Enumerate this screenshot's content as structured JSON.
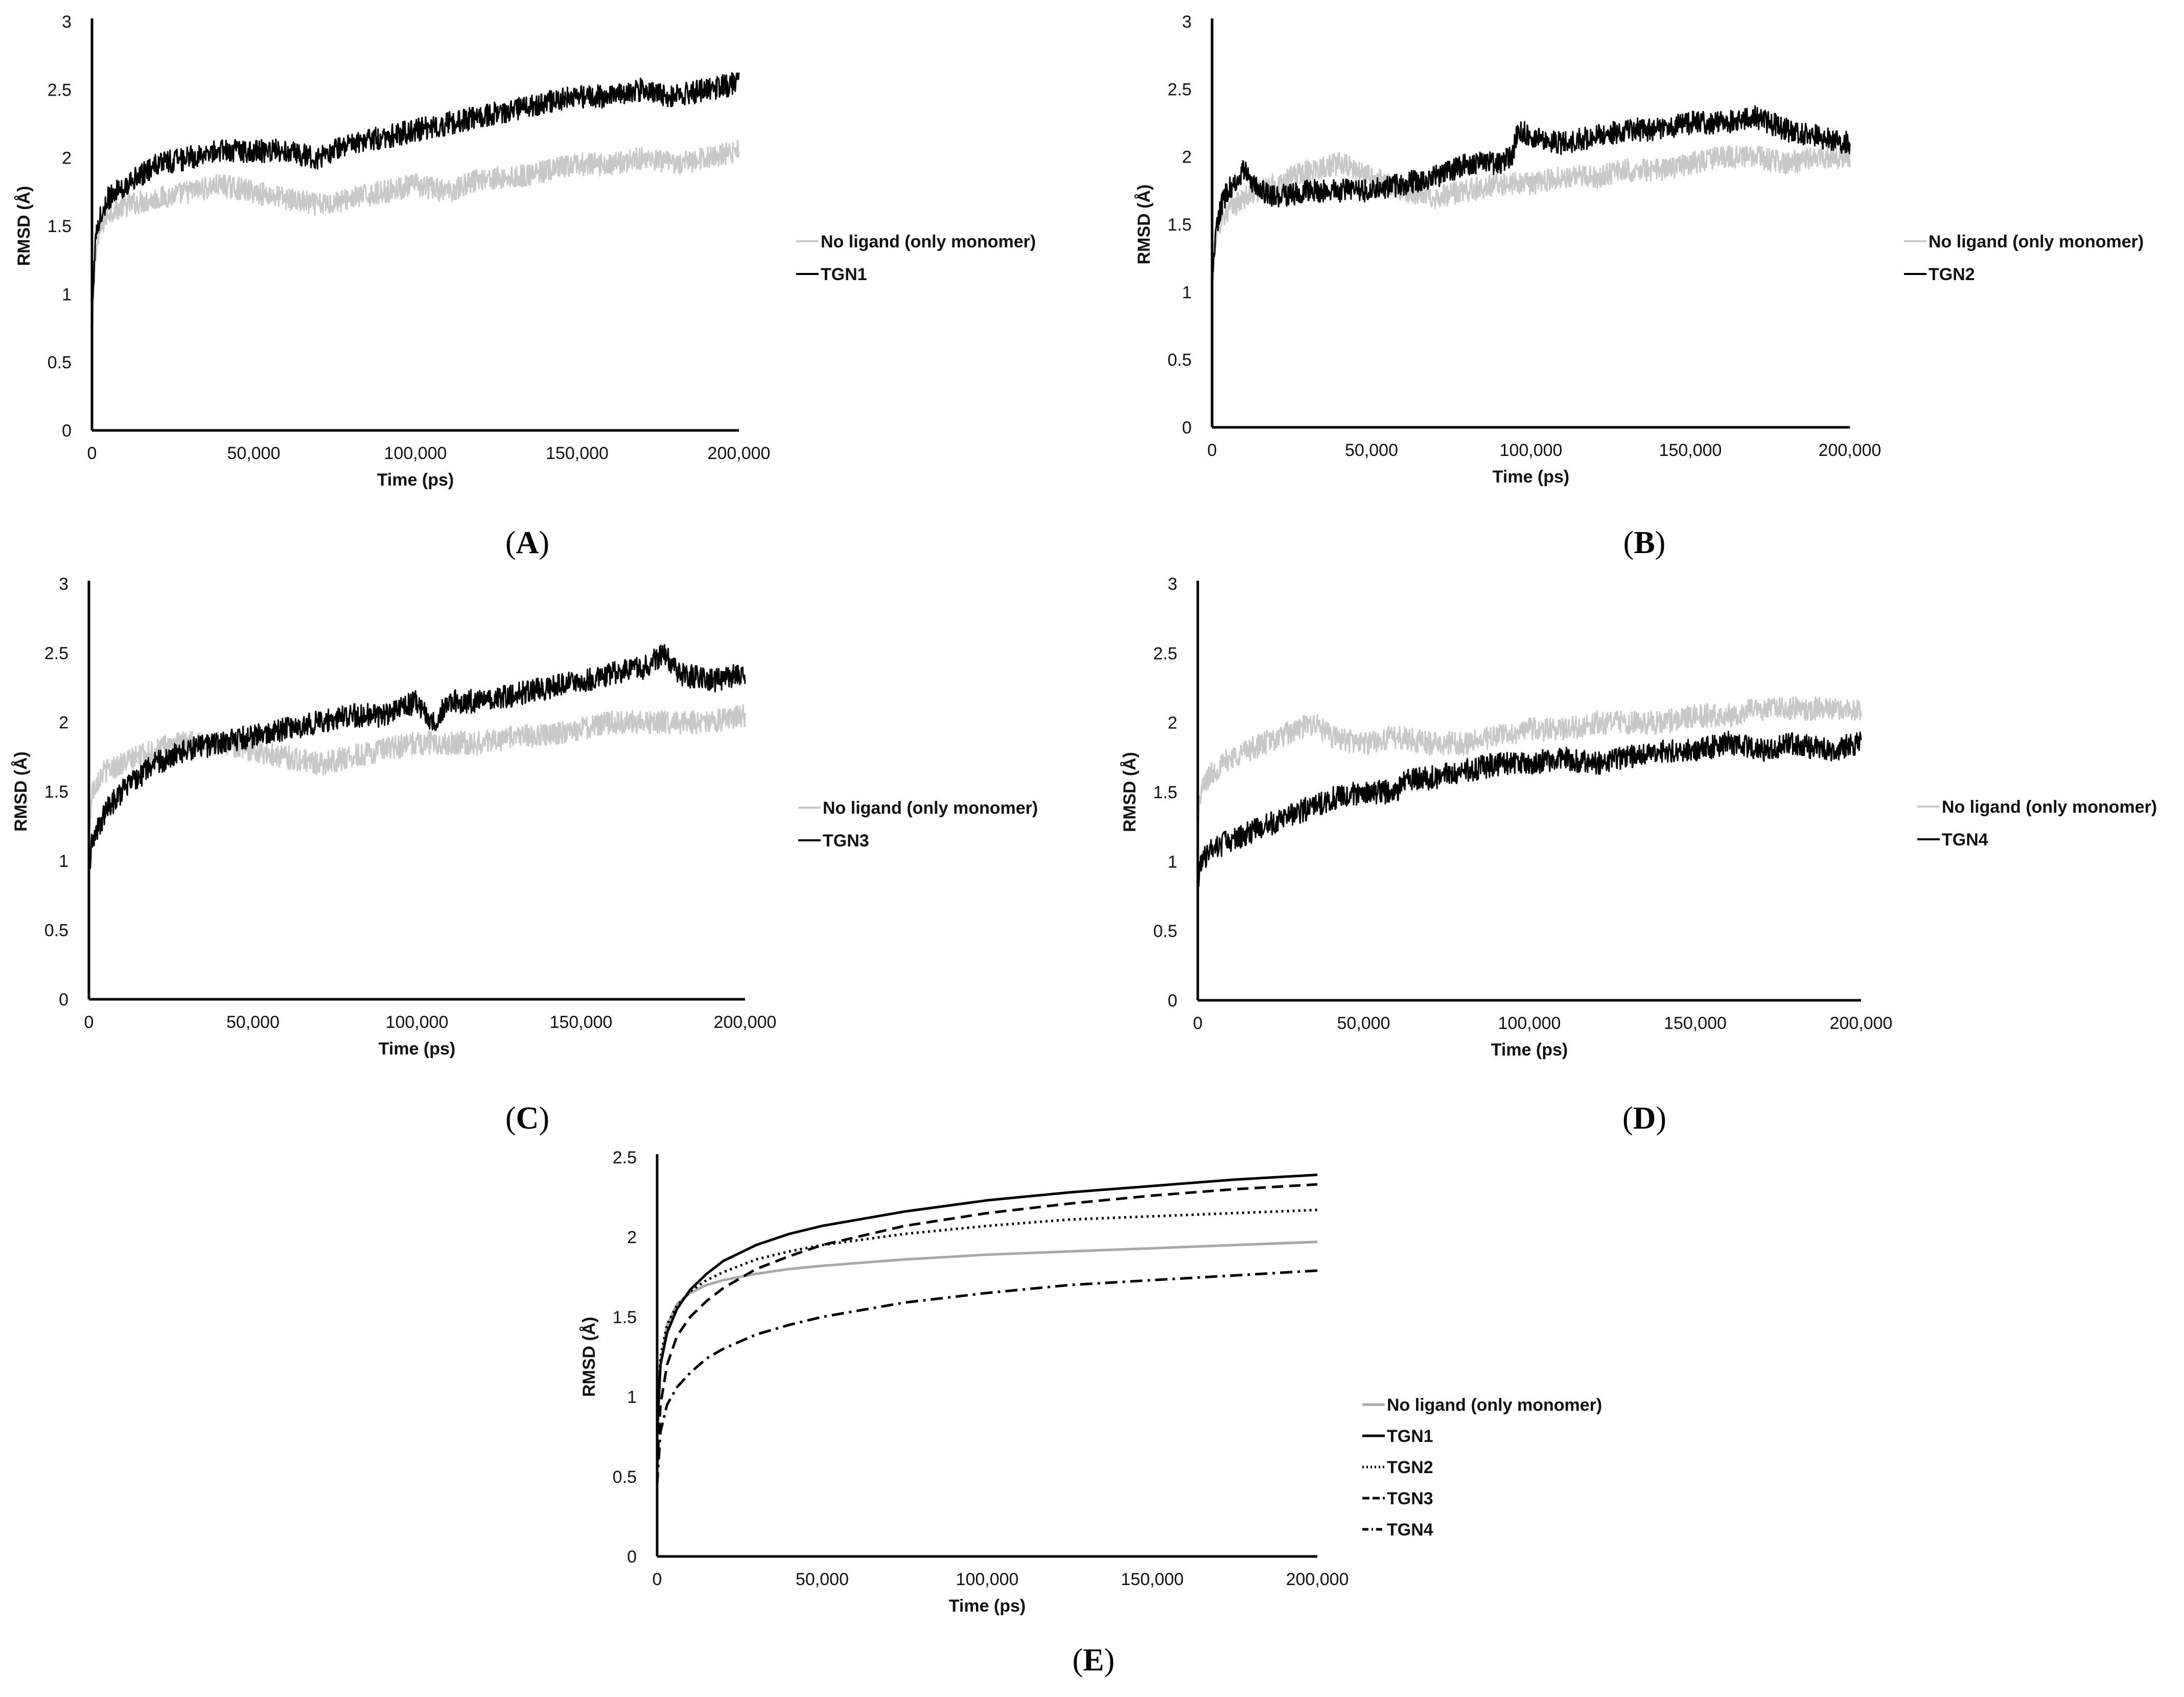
{
  "chart_data": [
    {
      "panel": "A",
      "type": "line",
      "xlabel": "Time (ps)",
      "ylabel": "RMSD (Å)",
      "xlim": [
        0,
        200000
      ],
      "ylim": [
        0,
        3
      ],
      "xticks": [
        "0",
        "50,000",
        "100,000",
        "150,000",
        "200,000"
      ],
      "yticks": [
        "0",
        "0.5",
        "1",
        "1.5",
        "2",
        "2.5",
        "3"
      ],
      "legend_position": "right",
      "series": [
        {
          "name": "No ligand (only monomer)",
          "color": "#c8c8c8",
          "style": "solid",
          "x": [
            0,
            1000,
            3000,
            5000,
            10000,
            20000,
            30000,
            40000,
            50000,
            60000,
            70000,
            80000,
            90000,
            100000,
            110000,
            120000,
            130000,
            140000,
            150000,
            160000,
            170000,
            180000,
            190000,
            200000
          ],
          "y": [
            0.6,
            1.3,
            1.5,
            1.6,
            1.65,
            1.7,
            1.75,
            1.8,
            1.75,
            1.7,
            1.65,
            1.7,
            1.75,
            1.8,
            1.75,
            1.85,
            1.85,
            1.9,
            1.95,
            1.95,
            2.0,
            1.95,
            2.0,
            2.05
          ]
        },
        {
          "name": "TGN1",
          "color": "#000000",
          "style": "solid",
          "x": [
            0,
            1000,
            3000,
            5000,
            10000,
            20000,
            30000,
            40000,
            50000,
            60000,
            70000,
            80000,
            90000,
            100000,
            110000,
            120000,
            130000,
            140000,
            150000,
            160000,
            170000,
            180000,
            190000,
            200000
          ],
          "y": [
            0.85,
            1.4,
            1.6,
            1.7,
            1.8,
            1.95,
            2.0,
            2.05,
            2.05,
            2.05,
            2.0,
            2.1,
            2.15,
            2.2,
            2.25,
            2.3,
            2.35,
            2.4,
            2.45,
            2.45,
            2.5,
            2.45,
            2.5,
            2.55
          ]
        }
      ]
    },
    {
      "panel": "B",
      "type": "line",
      "xlabel": "Time (ps)",
      "ylabel": "RMSD (Å)",
      "xlim": [
        0,
        200000
      ],
      "ylim": [
        0,
        3
      ],
      "xticks": [
        "0",
        "50,000",
        "100,000",
        "150,000",
        "200,000"
      ],
      "yticks": [
        "0",
        "0.5",
        "1",
        "1.5",
        "2",
        "2.5",
        "3"
      ],
      "legend_position": "right",
      "series": [
        {
          "name": "No ligand (only monomer)",
          "color": "#c8c8c8",
          "style": "solid",
          "x": [
            0,
            1000,
            3000,
            5000,
            10000,
            20000,
            30000,
            40000,
            50000,
            60000,
            70000,
            80000,
            90000,
            100000,
            110000,
            120000,
            130000,
            140000,
            150000,
            160000,
            170000,
            180000,
            190000,
            200000
          ],
          "y": [
            1.0,
            1.4,
            1.55,
            1.6,
            1.7,
            1.8,
            1.9,
            1.95,
            1.85,
            1.75,
            1.7,
            1.75,
            1.8,
            1.8,
            1.85,
            1.85,
            1.9,
            1.9,
            1.95,
            2.0,
            2.0,
            1.95,
            2.0,
            2.0
          ]
        },
        {
          "name": "TGN2",
          "color": "#000000",
          "style": "solid",
          "x": [
            0,
            1000,
            3000,
            5000,
            10000,
            15000,
            20000,
            30000,
            40000,
            50000,
            60000,
            70000,
            80000,
            90000,
            94000,
            96000,
            100000,
            110000,
            120000,
            130000,
            140000,
            150000,
            160000,
            170000,
            180000,
            190000,
            200000
          ],
          "y": [
            1.0,
            1.45,
            1.65,
            1.75,
            1.9,
            1.75,
            1.7,
            1.75,
            1.75,
            1.75,
            1.8,
            1.85,
            1.95,
            1.95,
            2.0,
            2.2,
            2.15,
            2.1,
            2.15,
            2.2,
            2.2,
            2.25,
            2.25,
            2.3,
            2.2,
            2.15,
            2.1
          ]
        }
      ]
    },
    {
      "panel": "C",
      "type": "line",
      "xlabel": "Time (ps)",
      "ylabel": "RMSD (Å)",
      "xlim": [
        0,
        200000
      ],
      "ylim": [
        0,
        3
      ],
      "xticks": [
        "0",
        "50,000",
        "100,000",
        "150,000",
        "200,000"
      ],
      "yticks": [
        "0",
        "0.5",
        "1",
        "1.5",
        "2",
        "2.5",
        "3"
      ],
      "legend_position": "right",
      "series": [
        {
          "name": "No ligand (only monomer)",
          "color": "#c8c8c8",
          "style": "solid",
          "x": [
            0,
            1000,
            3000,
            5000,
            10000,
            20000,
            30000,
            40000,
            50000,
            60000,
            70000,
            80000,
            90000,
            100000,
            110000,
            120000,
            130000,
            140000,
            150000,
            160000,
            170000,
            180000,
            190000,
            200000
          ],
          "y": [
            1.2,
            1.5,
            1.6,
            1.65,
            1.7,
            1.8,
            1.85,
            1.85,
            1.8,
            1.75,
            1.7,
            1.75,
            1.8,
            1.85,
            1.85,
            1.85,
            1.9,
            1.9,
            1.95,
            2.0,
            2.0,
            2.0,
            2.0,
            2.05
          ]
        },
        {
          "name": "TGN3",
          "color": "#000000",
          "style": "solid",
          "x": [
            0,
            1000,
            3000,
            5000,
            10000,
            20000,
            30000,
            40000,
            50000,
            60000,
            70000,
            80000,
            90000,
            100000,
            105000,
            110000,
            120000,
            130000,
            140000,
            150000,
            160000,
            170000,
            175000,
            180000,
            190000,
            200000
          ],
          "y": [
            0.9,
            1.15,
            1.25,
            1.35,
            1.5,
            1.7,
            1.8,
            1.85,
            1.9,
            1.95,
            2.0,
            2.05,
            2.05,
            2.15,
            2.0,
            2.15,
            2.15,
            2.2,
            2.25,
            2.3,
            2.35,
            2.4,
            2.5,
            2.35,
            2.3,
            2.35
          ]
        }
      ]
    },
    {
      "panel": "D",
      "type": "line",
      "xlabel": "Time (ps)",
      "ylabel": "RMSD (Å)",
      "xlim": [
        0,
        200000
      ],
      "ylim": [
        0,
        3
      ],
      "xticks": [
        "0",
        "50,000",
        "100,000",
        "150,000",
        "200,000"
      ],
      "yticks": [
        "0",
        "0.5",
        "1",
        "1.5",
        "2",
        "2.5",
        "3"
      ],
      "legend_position": "right",
      "series": [
        {
          "name": "No ligand (only monomer)",
          "color": "#c8c8c8",
          "style": "solid",
          "x": [
            0,
            1000,
            3000,
            5000,
            10000,
            20000,
            30000,
            35000,
            40000,
            50000,
            60000,
            70000,
            80000,
            90000,
            100000,
            110000,
            120000,
            130000,
            140000,
            150000,
            160000,
            170000,
            180000,
            190000,
            200000
          ],
          "y": [
            1.3,
            1.5,
            1.6,
            1.65,
            1.75,
            1.85,
            1.95,
            2.0,
            1.9,
            1.85,
            1.9,
            1.85,
            1.85,
            1.9,
            1.95,
            1.95,
            2.0,
            2.0,
            2.0,
            2.05,
            2.05,
            2.1,
            2.1,
            2.1,
            2.1
          ]
        },
        {
          "name": "TGN4",
          "color": "#000000",
          "style": "solid",
          "x": [
            0,
            1000,
            3000,
            5000,
            10000,
            20000,
            30000,
            40000,
            50000,
            60000,
            62000,
            70000,
            80000,
            90000,
            100000,
            110000,
            120000,
            130000,
            140000,
            150000,
            160000,
            170000,
            180000,
            190000,
            200000
          ],
          "y": [
            0.8,
            1.0,
            1.05,
            1.1,
            1.15,
            1.25,
            1.35,
            1.45,
            1.5,
            1.5,
            1.6,
            1.6,
            1.65,
            1.7,
            1.7,
            1.75,
            1.7,
            1.75,
            1.8,
            1.8,
            1.85,
            1.8,
            1.85,
            1.8,
            1.85
          ]
        }
      ]
    },
    {
      "panel": "E",
      "type": "line",
      "xlabel": "Time (ps)",
      "ylabel": "RMSD (Å)",
      "xlim": [
        0,
        200000
      ],
      "ylim": [
        0,
        2.5
      ],
      "xticks": [
        "0",
        "50,000",
        "100,000",
        "150,000",
        "200,000"
      ],
      "yticks": [
        "0",
        "0.5",
        "1",
        "1.5",
        "2",
        "2.5"
      ],
      "legend_position": "bottom-right",
      "series": [
        {
          "name": "No ligand (only monomer)",
          "color": "#a8a8a8",
          "style": "solid",
          "x": [
            0,
            1000,
            3000,
            6000,
            10000,
            15000,
            20000,
            30000,
            40000,
            50000,
            75000,
            100000,
            125000,
            150000,
            175000,
            200000
          ],
          "y": [
            0.7,
            1.2,
            1.45,
            1.58,
            1.65,
            1.7,
            1.73,
            1.77,
            1.8,
            1.82,
            1.86,
            1.89,
            1.91,
            1.93,
            1.95,
            1.97
          ]
        },
        {
          "name": "TGN1",
          "color": "#000000",
          "style": "solid",
          "x": [
            0,
            1000,
            3000,
            6000,
            10000,
            15000,
            20000,
            30000,
            40000,
            50000,
            75000,
            100000,
            125000,
            150000,
            175000,
            200000
          ],
          "y": [
            0.8,
            1.2,
            1.4,
            1.55,
            1.67,
            1.77,
            1.85,
            1.95,
            2.02,
            2.07,
            2.16,
            2.23,
            2.28,
            2.32,
            2.36,
            2.39
          ]
        },
        {
          "name": "TGN2",
          "color": "#000000",
          "style": "dotted",
          "x": [
            0,
            1000,
            3000,
            6000,
            10000,
            15000,
            20000,
            30000,
            40000,
            50000,
            75000,
            100000,
            125000,
            150000,
            175000,
            200000
          ],
          "y": [
            0.8,
            1.25,
            1.45,
            1.57,
            1.66,
            1.73,
            1.78,
            1.86,
            1.91,
            1.95,
            2.02,
            2.07,
            2.11,
            2.13,
            2.15,
            2.17
          ]
        },
        {
          "name": "TGN3",
          "color": "#000000",
          "style": "dashed",
          "x": [
            0,
            1000,
            3000,
            6000,
            10000,
            15000,
            20000,
            30000,
            40000,
            50000,
            75000,
            100000,
            125000,
            150000,
            175000,
            200000
          ],
          "y": [
            0.55,
            0.95,
            1.2,
            1.38,
            1.5,
            1.6,
            1.68,
            1.8,
            1.88,
            1.95,
            2.07,
            2.15,
            2.21,
            2.26,
            2.3,
            2.33
          ]
        },
        {
          "name": "TGN4",
          "color": "#000000",
          "style": "dashdot",
          "x": [
            0,
            1000,
            3000,
            6000,
            10000,
            15000,
            20000,
            30000,
            40000,
            50000,
            75000,
            100000,
            125000,
            150000,
            175000,
            200000
          ],
          "y": [
            0.45,
            0.78,
            0.95,
            1.06,
            1.15,
            1.24,
            1.3,
            1.39,
            1.45,
            1.5,
            1.59,
            1.65,
            1.7,
            1.73,
            1.76,
            1.79
          ]
        }
      ]
    }
  ]
}
